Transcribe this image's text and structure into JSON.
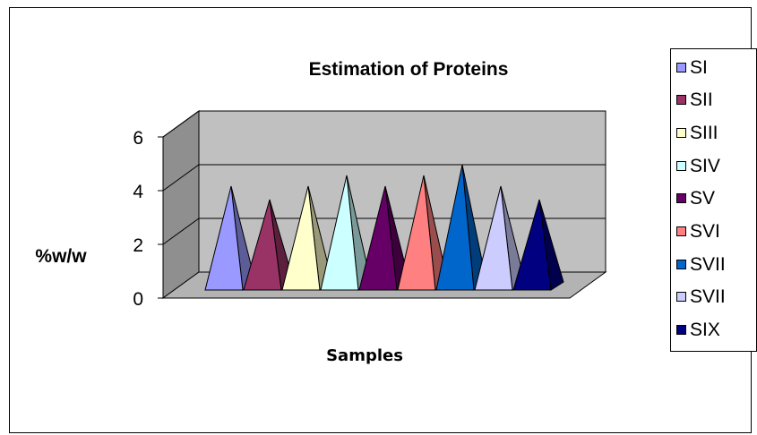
{
  "chart_data": {
    "type": "bar",
    "title": "Estimation of Proteins",
    "xlabel": "Samples",
    "ylabel": "%w/w",
    "categories": [
      ""
    ],
    "ylim": [
      0,
      6
    ],
    "yticks": [
      "0",
      "2",
      "4",
      "6"
    ],
    "grid": true,
    "legend_position": "right",
    "series": [
      {
        "name": "SI",
        "values": [
          4.0
        ],
        "color": "#9999ff"
      },
      {
        "name": "SII",
        "values": [
          3.5
        ],
        "color": "#993366"
      },
      {
        "name": "SIII",
        "values": [
          4.0
        ],
        "color": "#ffffcc"
      },
      {
        "name": "SIV",
        "values": [
          4.4
        ],
        "color": "#ccffff"
      },
      {
        "name": "SV",
        "values": [
          4.0
        ],
        "color": "#660066"
      },
      {
        "name": "SVI",
        "values": [
          4.4
        ],
        "color": "#ff8080"
      },
      {
        "name": "SVII",
        "values": [
          4.8
        ],
        "color": "#0066cc"
      },
      {
        "name": "SVII",
        "values": [
          4.0
        ],
        "color": "#ccccff"
      },
      {
        "name": "SIX",
        "values": [
          3.5
        ],
        "color": "#000080"
      }
    ]
  }
}
